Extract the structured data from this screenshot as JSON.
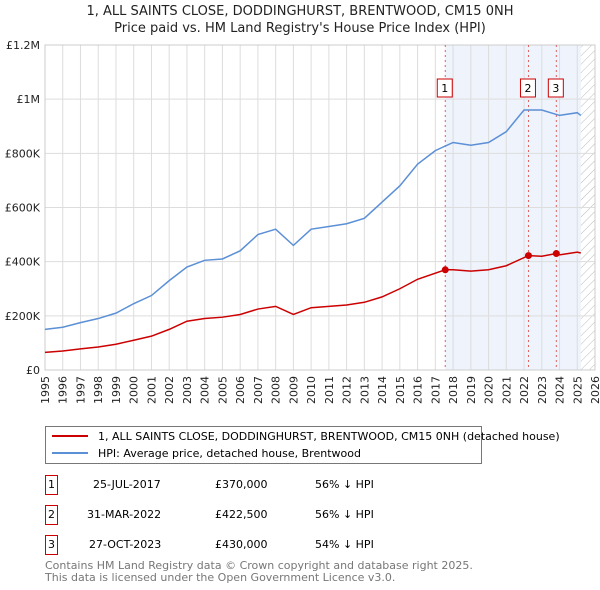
{
  "chart_data": {
    "type": "line",
    "title": "1, ALL SAINTS CLOSE, DODDINGHURST, BRENTWOOD, CM15 0NH",
    "subtitle": "Price paid vs. HM Land Registry's House Price Index (HPI)",
    "xlim": [
      1995,
      2026
    ],
    "ylim": [
      0,
      1200000
    ],
    "y_ticks": [
      {
        "v": 0,
        "label": "£0"
      },
      {
        "v": 200000,
        "label": "£200K"
      },
      {
        "v": 400000,
        "label": "£400K"
      },
      {
        "v": 600000,
        "label": "£600K"
      },
      {
        "v": 800000,
        "label": "£800K"
      },
      {
        "v": 1000000,
        "label": "£1M"
      },
      {
        "v": 1200000,
        "label": "£1.2M"
      }
    ],
    "x_ticks": [
      "1995",
      "1996",
      "1997",
      "1998",
      "1999",
      "2000",
      "2001",
      "2002",
      "2003",
      "2004",
      "2005",
      "2006",
      "2007",
      "2008",
      "2009",
      "2010",
      "2011",
      "2012",
      "2013",
      "2014",
      "2015",
      "2016",
      "2017",
      "2018",
      "2019",
      "2020",
      "2021",
      "2022",
      "2023",
      "2024",
      "2025",
      "2026"
    ],
    "series": [
      {
        "name": "1, ALL SAINTS CLOSE, DODDINGHURST, BRENTWOOD, CM15 0NH (detached house)",
        "color": "#cc0000",
        "x": [
          1995,
          1996,
          1997,
          1998,
          1999,
          2000,
          2001,
          2002,
          2003,
          2004,
          2005,
          2006,
          2007,
          2008,
          2009,
          2010,
          2011,
          2012,
          2013,
          2014,
          2015,
          2016,
          2017.56,
          2018,
          2019,
          2020,
          2021,
          2022.25,
          2023,
          2023.82,
          2024,
          2025,
          2025.2
        ],
        "y": [
          65000,
          70000,
          78000,
          85000,
          95000,
          110000,
          125000,
          150000,
          180000,
          190000,
          195000,
          205000,
          225000,
          235000,
          205000,
          230000,
          235000,
          240000,
          250000,
          270000,
          300000,
          335000,
          370000,
          370000,
          365000,
          370000,
          385000,
          422500,
          420000,
          430000,
          425000,
          435000,
          432000
        ]
      },
      {
        "name": "HPI: Average price, detached house, Brentwood",
        "color": "#5b8fd6",
        "x": [
          1995,
          1996,
          1997,
          1998,
          1999,
          2000,
          2001,
          2002,
          2003,
          2004,
          2005,
          2006,
          2007,
          2008,
          2009,
          2010,
          2011,
          2012,
          2013,
          2014,
          2015,
          2016,
          2017,
          2018,
          2019,
          2020,
          2021,
          2022,
          2023,
          2024,
          2025,
          2025.2
        ],
        "y": [
          150000,
          158000,
          175000,
          190000,
          210000,
          245000,
          275000,
          330000,
          380000,
          405000,
          410000,
          440000,
          500000,
          520000,
          460000,
          520000,
          530000,
          540000,
          560000,
          620000,
          680000,
          760000,
          810000,
          840000,
          830000,
          840000,
          880000,
          960000,
          960000,
          940000,
          950000,
          940000
        ]
      }
    ],
    "sales": [
      {
        "n": "1",
        "x": 2017.56,
        "date": "25-JUL-2017",
        "price": "£370,000",
        "value": 370000,
        "delta": "56% ↓ HPI"
      },
      {
        "n": "2",
        "x": 2022.25,
        "date": "31-MAR-2022",
        "price": "£422,500",
        "value": 422500,
        "delta": "56% ↓ HPI"
      },
      {
        "n": "3",
        "x": 2023.82,
        "date": "27-OCT-2023",
        "price": "£430,000",
        "value": 430000,
        "delta": "54% ↓ HPI"
      }
    ],
    "shaded_from": 2017.56,
    "hatched_from": 2025.2
  },
  "footer": {
    "line1": "Contains HM Land Registry data © Crown copyright and database right 2025.",
    "line2": "This data is licensed under the Open Government Licence v3.0."
  }
}
